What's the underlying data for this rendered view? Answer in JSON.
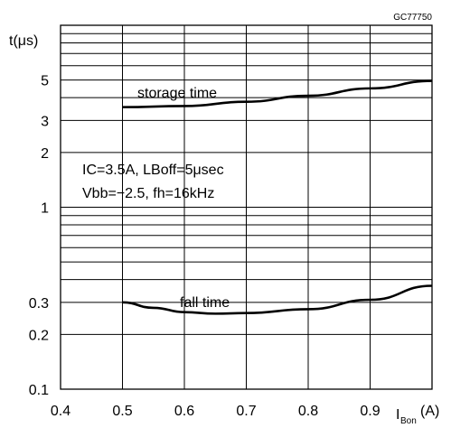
{
  "chart_data": {
    "type": "line",
    "code_label": "GC77750",
    "ylabel": "t(μs)",
    "xlabel_main": "I",
    "xlabel_sub": "Bon",
    "xlabel_unit": "(A)",
    "yscale": "log",
    "xlim": [
      0.4,
      1.0
    ],
    "ylim": [
      0.1,
      10
    ],
    "x_ticks": [
      "0.4",
      "0.5",
      "0.6",
      "0.7",
      "0.8",
      "0.9"
    ],
    "x_tick_values": [
      0.4,
      0.5,
      0.6,
      0.7,
      0.8,
      0.9
    ],
    "y_ticks": [
      "5",
      "3",
      "2",
      "1",
      "0.3",
      "0.2",
      "0.1"
    ],
    "y_tick_values": [
      5,
      3,
      2,
      1,
      0.3,
      0.2,
      0.1
    ],
    "grid": true,
    "conditions": [
      "IC=3.5A,  LBoff=5μsec",
      "Vbb=−2.5,  fh=16kHz"
    ],
    "series": [
      {
        "name": "storage time",
        "x": [
          0.5,
          0.6,
          0.7,
          0.8,
          0.9,
          1.0
        ],
        "y": [
          3.55,
          3.6,
          3.8,
          4.1,
          4.5,
          4.95
        ]
      },
      {
        "name": "fall time",
        "x": [
          0.5,
          0.55,
          0.6,
          0.65,
          0.7,
          0.8,
          0.9,
          1.0
        ],
        "y": [
          0.3,
          0.28,
          0.265,
          0.26,
          0.262,
          0.275,
          0.31,
          0.37
        ]
      }
    ]
  }
}
